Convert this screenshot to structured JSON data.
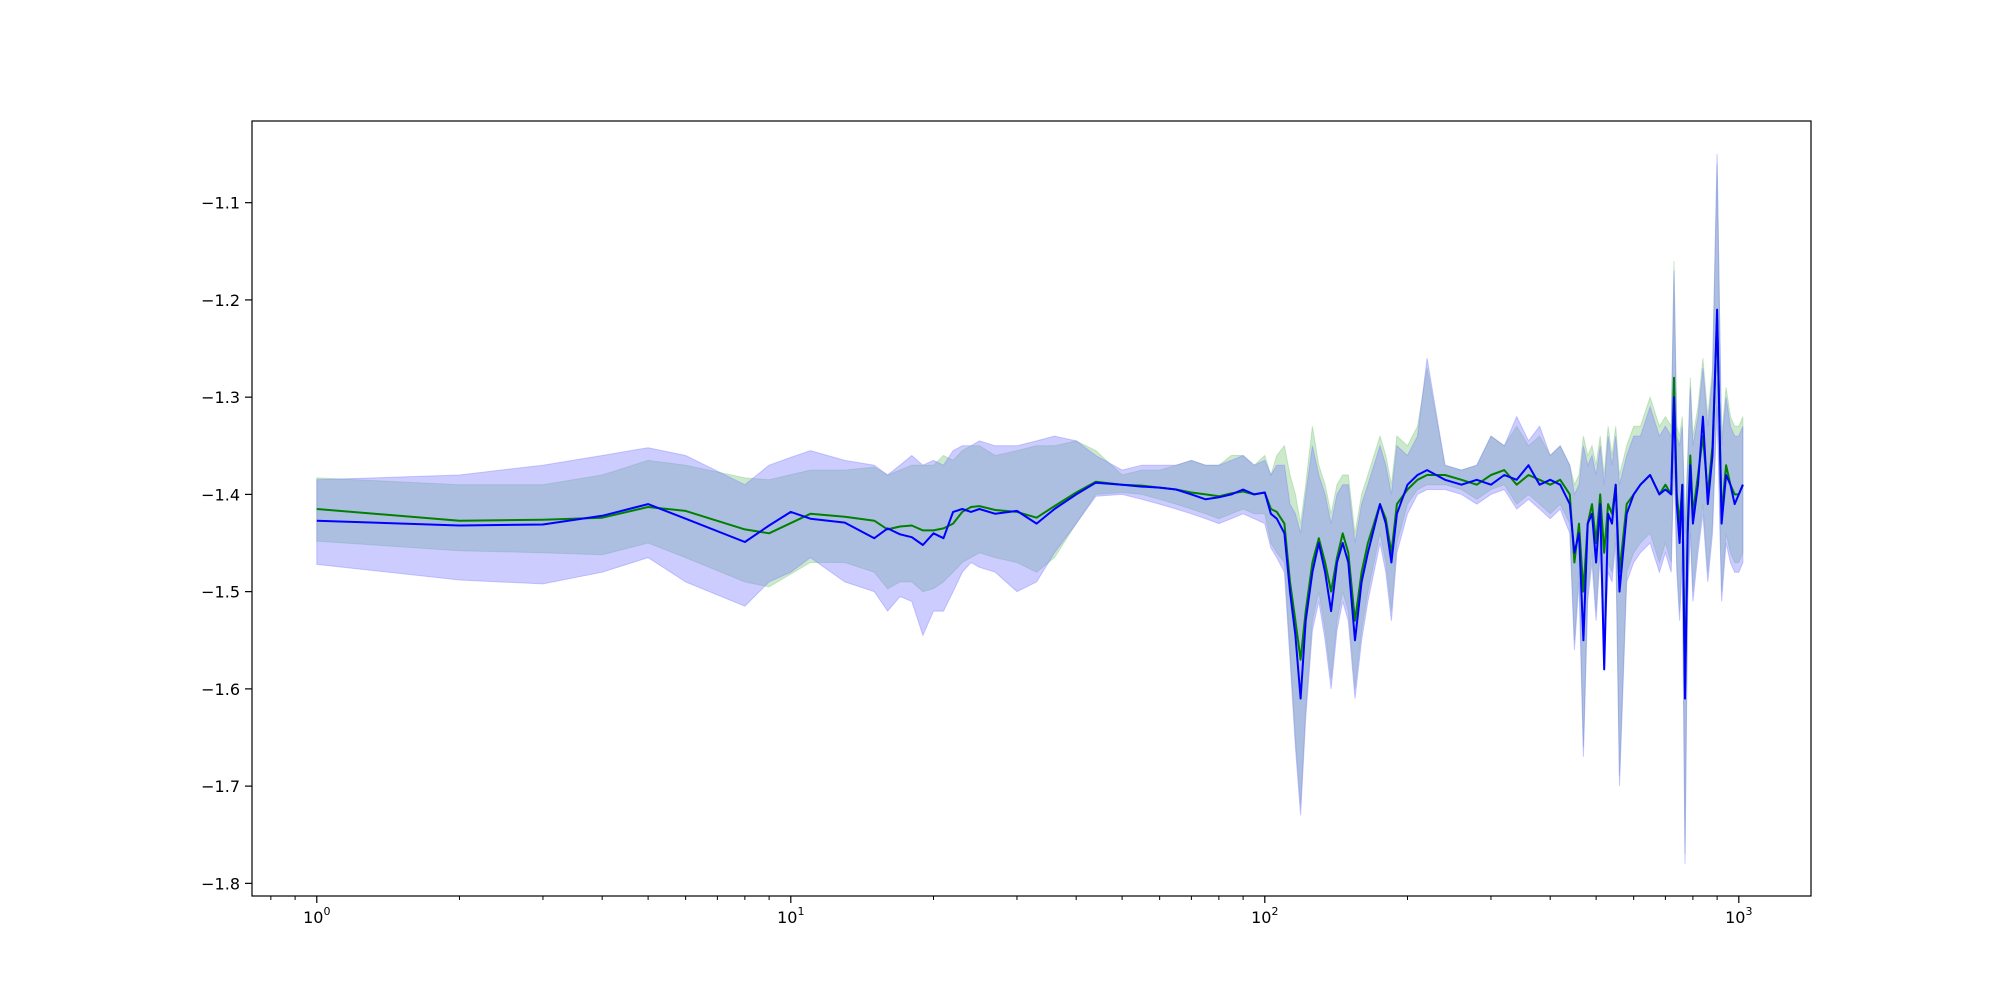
{
  "chart_data": {
    "type": "line",
    "title": "",
    "xlabel": "",
    "ylabel": "",
    "xscale": "log",
    "xlim": [
      0.73,
      1420
    ],
    "ylim": [
      -1.813,
      -1.016
    ],
    "grid": false,
    "legend": "none",
    "x_ticks": [
      {
        "value": 1,
        "base": "10",
        "exp": "0"
      },
      {
        "value": 10,
        "base": "10",
        "exp": "1"
      },
      {
        "value": 100,
        "base": "10",
        "exp": "2"
      },
      {
        "value": 1000,
        "base": "10",
        "exp": "3"
      }
    ],
    "y_ticks": [
      {
        "value": -1.1,
        "label": "−1.1"
      },
      {
        "value": -1.2,
        "label": "−1.2"
      },
      {
        "value": -1.3,
        "label": "−1.3"
      },
      {
        "value": -1.4,
        "label": "−1.4"
      },
      {
        "value": -1.5,
        "label": "−1.5"
      },
      {
        "value": -1.6,
        "label": "−1.6"
      },
      {
        "value": -1.7,
        "label": "−1.7"
      },
      {
        "value": -1.8,
        "label": "−1.8"
      }
    ],
    "series": [
      {
        "color": "#008000",
        "band_color": "#7fc97f",
        "band_opacity": 0.4,
        "x": [
          1,
          2,
          3,
          4,
          5,
          6,
          8,
          9,
          11,
          13,
          15,
          16,
          17,
          18,
          19,
          20,
          21,
          22,
          23,
          24,
          25,
          27,
          30,
          33,
          36,
          40,
          44,
          50,
          55,
          60,
          65,
          70,
          75,
          80,
          85,
          90,
          95,
          100,
          103,
          106,
          110,
          113,
          116,
          119,
          122,
          126,
          130,
          134,
          138,
          142,
          146,
          150,
          155,
          160,
          165,
          170,
          175,
          180,
          185,
          190,
          200,
          210,
          220,
          240,
          260,
          280,
          300,
          320,
          340,
          360,
          380,
          400,
          420,
          440,
          450,
          460,
          470,
          480,
          490,
          500,
          510,
          520,
          530,
          540,
          550,
          560,
          580,
          600,
          620,
          650,
          680,
          700,
          720,
          730,
          740,
          750,
          760,
          770,
          780,
          790,
          800,
          820,
          840,
          860,
          880,
          900,
          920,
          940,
          960,
          980,
          1000,
          1020
        ],
        "y": [
          -1.415,
          -1.427,
          -1.426,
          -1.424,
          -1.413,
          -1.417,
          -1.436,
          -1.44,
          -1.42,
          -1.423,
          -1.427,
          -1.436,
          -1.433,
          -1.432,
          -1.437,
          -1.437,
          -1.435,
          -1.43,
          -1.418,
          -1.413,
          -1.412,
          -1.416,
          -1.418,
          -1.424,
          -1.412,
          -1.398,
          -1.387,
          -1.39,
          -1.391,
          -1.393,
          -1.395,
          -1.398,
          -1.4,
          -1.402,
          -1.399,
          -1.397,
          -1.4,
          -1.398,
          -1.415,
          -1.418,
          -1.43,
          -1.49,
          -1.53,
          -1.57,
          -1.52,
          -1.47,
          -1.445,
          -1.47,
          -1.5,
          -1.465,
          -1.44,
          -1.46,
          -1.53,
          -1.48,
          -1.45,
          -1.43,
          -1.41,
          -1.425,
          -1.46,
          -1.41,
          -1.395,
          -1.385,
          -1.38,
          -1.38,
          -1.385,
          -1.39,
          -1.38,
          -1.375,
          -1.39,
          -1.38,
          -1.385,
          -1.39,
          -1.385,
          -1.4,
          -1.47,
          -1.43,
          -1.5,
          -1.43,
          -1.41,
          -1.45,
          -1.4,
          -1.46,
          -1.41,
          -1.42,
          -1.39,
          -1.48,
          -1.41,
          -1.4,
          -1.39,
          -1.38,
          -1.4,
          -1.39,
          -1.4,
          -1.28,
          -1.4,
          -1.43,
          -1.39,
          -1.6,
          -1.43,
          -1.36,
          -1.42,
          -1.38,
          -1.34,
          -1.4,
          -1.35,
          -1.22,
          -1.42,
          -1.37,
          -1.39,
          -1.4,
          -1.4,
          -1.39
        ],
        "lower": [
          -1.448,
          -1.458,
          -1.46,
          -1.462,
          -1.45,
          -1.465,
          -1.49,
          -1.495,
          -1.47,
          -1.47,
          -1.48,
          -1.497,
          -1.49,
          -1.49,
          -1.5,
          -1.497,
          -1.49,
          -1.48,
          -1.47,
          -1.465,
          -1.46,
          -1.465,
          -1.47,
          -1.48,
          -1.465,
          -1.43,
          -1.4,
          -1.398,
          -1.4,
          -1.405,
          -1.41,
          -1.415,
          -1.42,
          -1.425,
          -1.42,
          -1.415,
          -1.42,
          -1.42,
          -1.45,
          -1.46,
          -1.47,
          -1.56,
          -1.65,
          -1.72,
          -1.62,
          -1.53,
          -1.5,
          -1.54,
          -1.59,
          -1.53,
          -1.5,
          -1.52,
          -1.6,
          -1.54,
          -1.5,
          -1.47,
          -1.44,
          -1.47,
          -1.52,
          -1.45,
          -1.41,
          -1.395,
          -1.39,
          -1.39,
          -1.395,
          -1.405,
          -1.395,
          -1.39,
          -1.41,
          -1.4,
          -1.41,
          -1.42,
          -1.41,
          -1.43,
          -1.55,
          -1.48,
          -1.66,
          -1.5,
          -1.46,
          -1.52,
          -1.45,
          -1.56,
          -1.47,
          -1.48,
          -1.44,
          -1.69,
          -1.48,
          -1.46,
          -1.45,
          -1.44,
          -1.47,
          -1.45,
          -1.47,
          -1.35,
          -1.47,
          -1.52,
          -1.46,
          -1.77,
          -1.5,
          -1.43,
          -1.5,
          -1.45,
          -1.41,
          -1.48,
          -1.43,
          -1.3,
          -1.5,
          -1.44,
          -1.46,
          -1.47,
          -1.47,
          -1.46
        ],
        "upper": [
          -1.383,
          -1.39,
          -1.39,
          -1.38,
          -1.365,
          -1.37,
          -1.383,
          -1.385,
          -1.375,
          -1.375,
          -1.372,
          -1.38,
          -1.375,
          -1.37,
          -1.37,
          -1.37,
          -1.36,
          -1.365,
          -1.355,
          -1.35,
          -1.35,
          -1.36,
          -1.355,
          -1.35,
          -1.35,
          -1.345,
          -1.355,
          -1.38,
          -1.375,
          -1.375,
          -1.37,
          -1.365,
          -1.37,
          -1.37,
          -1.36,
          -1.36,
          -1.37,
          -1.36,
          -1.38,
          -1.36,
          -1.35,
          -1.38,
          -1.4,
          -1.43,
          -1.39,
          -1.33,
          -1.37,
          -1.39,
          -1.42,
          -1.39,
          -1.38,
          -1.38,
          -1.44,
          -1.4,
          -1.38,
          -1.36,
          -1.34,
          -1.36,
          -1.39,
          -1.34,
          -1.35,
          -1.33,
          -1.27,
          -1.37,
          -1.375,
          -1.37,
          -1.34,
          -1.35,
          -1.33,
          -1.35,
          -1.34,
          -1.36,
          -1.35,
          -1.37,
          -1.39,
          -1.38,
          -1.34,
          -1.36,
          -1.35,
          -1.37,
          -1.34,
          -1.38,
          -1.33,
          -1.36,
          -1.33,
          -1.38,
          -1.35,
          -1.33,
          -1.33,
          -1.3,
          -1.33,
          -1.32,
          -1.33,
          -1.16,
          -1.33,
          -1.34,
          -1.32,
          -1.43,
          -1.36,
          -1.28,
          -1.34,
          -1.31,
          -1.26,
          -1.32,
          -1.27,
          -1.06,
          -1.34,
          -1.29,
          -1.32,
          -1.33,
          -1.33,
          -1.32
        ]
      },
      {
        "color": "#0000ff",
        "band_color": "#8080ff",
        "band_opacity": 0.4,
        "x": [
          1,
          2,
          3,
          4,
          5,
          6,
          8,
          9,
          10,
          11,
          13,
          15,
          16,
          17,
          18,
          19,
          20,
          21,
          22,
          23,
          24,
          25,
          27,
          30,
          33,
          36,
          40,
          44,
          50,
          55,
          60,
          65,
          70,
          75,
          80,
          85,
          90,
          95,
          100,
          103,
          106,
          110,
          113,
          116,
          119,
          122,
          126,
          130,
          134,
          138,
          142,
          146,
          150,
          155,
          160,
          165,
          170,
          175,
          180,
          185,
          190,
          200,
          210,
          220,
          240,
          260,
          280,
          300,
          320,
          340,
          360,
          380,
          400,
          420,
          440,
          450,
          460,
          470,
          480,
          490,
          500,
          510,
          520,
          530,
          540,
          550,
          560,
          580,
          600,
          620,
          650,
          680,
          700,
          720,
          730,
          740,
          750,
          760,
          770,
          780,
          790,
          800,
          820,
          840,
          860,
          880,
          900,
          920,
          940,
          960,
          980,
          1000,
          1020
        ],
        "y": [
          -1.427,
          -1.432,
          -1.431,
          -1.422,
          -1.41,
          -1.425,
          -1.449,
          -1.432,
          -1.418,
          -1.425,
          -1.429,
          -1.445,
          -1.435,
          -1.441,
          -1.444,
          -1.452,
          -1.44,
          -1.445,
          -1.418,
          -1.415,
          -1.418,
          -1.415,
          -1.42,
          -1.417,
          -1.43,
          -1.415,
          -1.4,
          -1.388,
          -1.39,
          -1.392,
          -1.393,
          -1.395,
          -1.4,
          -1.405,
          -1.403,
          -1.4,
          -1.395,
          -1.4,
          -1.398,
          -1.42,
          -1.425,
          -1.44,
          -1.5,
          -1.545,
          -1.61,
          -1.53,
          -1.48,
          -1.45,
          -1.48,
          -1.52,
          -1.47,
          -1.45,
          -1.47,
          -1.55,
          -1.49,
          -1.46,
          -1.435,
          -1.41,
          -1.43,
          -1.47,
          -1.42,
          -1.39,
          -1.38,
          -1.375,
          -1.385,
          -1.39,
          -1.385,
          -1.39,
          -1.38,
          -1.385,
          -1.37,
          -1.39,
          -1.385,
          -1.39,
          -1.41,
          -1.46,
          -1.44,
          -1.55,
          -1.43,
          -1.42,
          -1.47,
          -1.41,
          -1.58,
          -1.42,
          -1.43,
          -1.39,
          -1.5,
          -1.42,
          -1.4,
          -1.39,
          -1.38,
          -1.4,
          -1.395,
          -1.4,
          -1.3,
          -1.41,
          -1.45,
          -1.39,
          -1.61,
          -1.44,
          -1.37,
          -1.43,
          -1.39,
          -1.32,
          -1.41,
          -1.36,
          -1.21,
          -1.43,
          -1.38,
          -1.39,
          -1.41,
          -1.4,
          -1.39
        ],
        "lower": [
          -1.472,
          -1.488,
          -1.492,
          -1.48,
          -1.465,
          -1.49,
          -1.515,
          -1.49,
          -1.48,
          -1.465,
          -1.49,
          -1.5,
          -1.52,
          -1.505,
          -1.51,
          -1.545,
          -1.52,
          -1.52,
          -1.5,
          -1.48,
          -1.47,
          -1.475,
          -1.48,
          -1.5,
          -1.49,
          -1.46,
          -1.43,
          -1.402,
          -1.4,
          -1.405,
          -1.41,
          -1.415,
          -1.42,
          -1.425,
          -1.43,
          -1.425,
          -1.42,
          -1.425,
          -1.43,
          -1.455,
          -1.465,
          -1.48,
          -1.57,
          -1.66,
          -1.73,
          -1.63,
          -1.54,
          -1.51,
          -1.55,
          -1.6,
          -1.54,
          -1.51,
          -1.53,
          -1.61,
          -1.55,
          -1.51,
          -1.48,
          -1.45,
          -1.48,
          -1.53,
          -1.46,
          -1.42,
          -1.4,
          -1.395,
          -1.395,
          -1.4,
          -1.41,
          -1.4,
          -1.395,
          -1.415,
          -1.405,
          -1.415,
          -1.425,
          -1.415,
          -1.44,
          -1.56,
          -1.49,
          -1.67,
          -1.51,
          -1.47,
          -1.53,
          -1.46,
          -1.57,
          -1.48,
          -1.49,
          -1.45,
          -1.7,
          -1.49,
          -1.47,
          -1.46,
          -1.45,
          -1.48,
          -1.46,
          -1.48,
          -1.36,
          -1.48,
          -1.53,
          -1.47,
          -1.78,
          -1.51,
          -1.44,
          -1.51,
          -1.46,
          -1.42,
          -1.49,
          -1.44,
          -1.31,
          -1.51,
          -1.45,
          -1.47,
          -1.48,
          -1.48,
          -1.47
        ],
        "upper": [
          -1.385,
          -1.38,
          -1.37,
          -1.36,
          -1.352,
          -1.36,
          -1.39,
          -1.37,
          -1.362,
          -1.355,
          -1.365,
          -1.37,
          -1.38,
          -1.37,
          -1.36,
          -1.37,
          -1.365,
          -1.37,
          -1.355,
          -1.35,
          -1.35,
          -1.345,
          -1.35,
          -1.35,
          -1.345,
          -1.34,
          -1.345,
          -1.36,
          -1.375,
          -1.37,
          -1.37,
          -1.37,
          -1.365,
          -1.37,
          -1.37,
          -1.365,
          -1.36,
          -1.37,
          -1.365,
          -1.38,
          -1.37,
          -1.37,
          -1.41,
          -1.42,
          -1.44,
          -1.4,
          -1.35,
          -1.38,
          -1.4,
          -1.43,
          -1.4,
          -1.39,
          -1.39,
          -1.45,
          -1.41,
          -1.39,
          -1.37,
          -1.35,
          -1.37,
          -1.4,
          -1.35,
          -1.36,
          -1.34,
          -1.26,
          -1.37,
          -1.375,
          -1.37,
          -1.34,
          -1.35,
          -1.32,
          -1.345,
          -1.33,
          -1.36,
          -1.35,
          -1.37,
          -1.4,
          -1.39,
          -1.35,
          -1.37,
          -1.36,
          -1.38,
          -1.35,
          -1.39,
          -1.34,
          -1.37,
          -1.34,
          -1.39,
          -1.36,
          -1.34,
          -1.34,
          -1.31,
          -1.34,
          -1.33,
          -1.34,
          -1.17,
          -1.34,
          -1.35,
          -1.33,
          -1.44,
          -1.37,
          -1.29,
          -1.35,
          -1.32,
          -1.27,
          -1.33,
          -1.28,
          -1.05,
          -1.35,
          -1.3,
          -1.33,
          -1.34,
          -1.34,
          -1.33
        ]
      }
    ]
  }
}
